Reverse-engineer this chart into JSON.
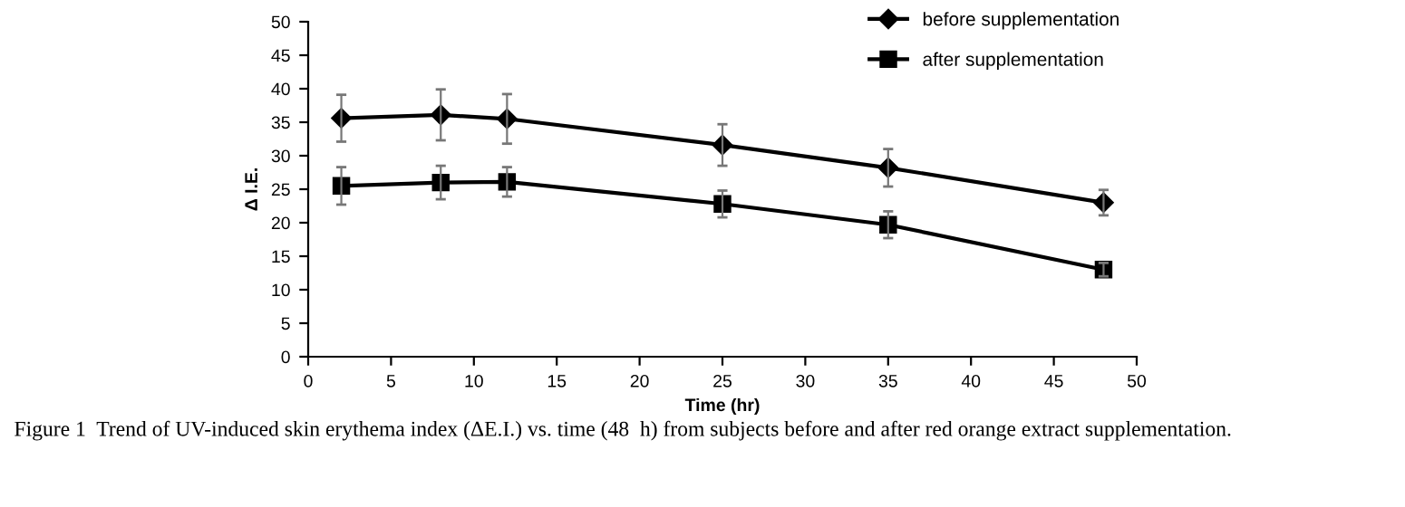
{
  "chart_data": {
    "type": "line",
    "xlabel": "Time (hr)",
    "ylabel": "Δ I.E.",
    "x": [
      2,
      8,
      12,
      25,
      35,
      48
    ],
    "series": [
      {
        "name": "before supplementation",
        "color": "#000000",
        "marker": "diamond",
        "values": [
          35.6,
          36.1,
          35.5,
          31.6,
          28.2,
          23.0
        ],
        "errors": [
          3.5,
          3.8,
          3.7,
          3.1,
          2.8,
          1.9
        ]
      },
      {
        "name": "after supplementation",
        "color": "#000000",
        "marker": "square",
        "values": [
          25.5,
          26.0,
          26.1,
          22.8,
          19.7,
          13.0
        ],
        "errors": [
          2.8,
          2.5,
          2.2,
          2.0,
          2.0,
          1.0
        ]
      }
    ],
    "xlim": [
      0,
      50
    ],
    "xticks": [
      0,
      5,
      10,
      15,
      20,
      25,
      30,
      35,
      40,
      45,
      50
    ],
    "ylim": [
      0,
      50
    ],
    "yticks": [
      0,
      5,
      10,
      15,
      20,
      25,
      30,
      35,
      40,
      45,
      50
    ],
    "grid": false,
    "legend": "top right",
    "line_style": "solid",
    "annotations": [
      "Figure 1  Trend of UV-induced skin erythema index (ΔE.I.) vs. time (48  h) from subjects before and after red orange extract supplementation."
    ]
  }
}
